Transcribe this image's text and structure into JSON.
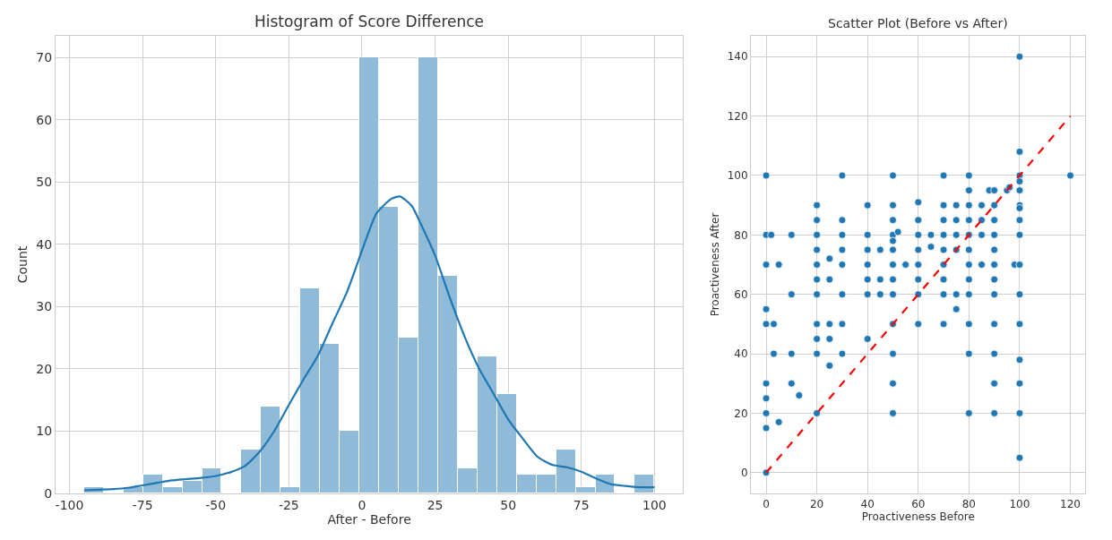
{
  "chart_data": [
    {
      "type": "histogram",
      "title": "Histogram of Score Difference",
      "xlabel": "After - Before",
      "ylabel": "Count",
      "grid": true,
      "xlim": [
        -104.75,
        109.75
      ],
      "ylim": [
        0,
        73.5
      ],
      "xticks": [
        -100,
        -75,
        -50,
        -25,
        0,
        25,
        50,
        75,
        100
      ],
      "yticks": [
        0,
        10,
        20,
        30,
        40,
        50,
        60,
        70
      ],
      "series": [
        {
          "color": "#8fbbd9",
          "bins": [
            -95,
            -88.28,
            -81.55,
            -74.83,
            -68.1,
            -61.38,
            -54.66,
            -47.93,
            -41.21,
            -34.48,
            -27.76,
            -21.03,
            -14.31,
            -7.59,
            -0.86,
            5.86,
            12.59,
            19.31,
            26.03,
            32.76,
            39.48,
            46.21,
            52.93,
            59.66,
            66.38,
            73.1,
            79.83,
            86.55,
            93.28,
            100
          ],
          "values": [
            1,
            0,
            1,
            3,
            1,
            2,
            4,
            0,
            7,
            14,
            1,
            33,
            24,
            10,
            70,
            46,
            25,
            70,
            35,
            4,
            22,
            16,
            3,
            3,
            7,
            1,
            3,
            0,
            3
          ]
        },
        {
          "type": "line",
          "color": "#1f77b4",
          "x": [
            -95,
            -90,
            -85,
            -80,
            -75,
            -70,
            -65,
            -60,
            -55,
            -50,
            -45,
            -40,
            -35,
            -30,
            -25,
            -20,
            -15,
            -10,
            -5,
            0,
            5,
            10,
            13,
            17,
            20,
            25,
            30,
            35,
            40,
            45,
            50,
            55,
            60,
            65,
            70,
            75,
            80,
            85,
            90,
            95,
            100
          ],
          "values": [
            0.5,
            0.6,
            0.7,
            0.9,
            1.3,
            1.7,
            2.1,
            2.3,
            2.5,
            2.8,
            3.4,
            4.4,
            6.7,
            10,
            14.2,
            18.3,
            22.2,
            27.4,
            32.5,
            39,
            45,
            47.3,
            47.7,
            46.2,
            43.4,
            38.2,
            31.5,
            25.3,
            20.1,
            16,
            11.9,
            8.8,
            5.9,
            4.6,
            4.2,
            3.5,
            2.4,
            1.5,
            1.2,
            1,
            1
          ]
        }
      ]
    },
    {
      "type": "scatter",
      "title": "Scatter Plot (Before vs After)",
      "xlabel": "Proactiveness Before",
      "ylabel": "Proactiveness After",
      "grid": true,
      "xlim": [
        -6,
        126
      ],
      "ylim": [
        -7,
        147
      ],
      "xticks": [
        0,
        20,
        40,
        60,
        80,
        100,
        120
      ],
      "yticks": [
        0,
        20,
        40,
        60,
        80,
        100,
        120,
        140
      ],
      "series": [
        {
          "marker": "circle",
          "color": "#1f77b4",
          "x": [
            0,
            0,
            0,
            0,
            0,
            0,
            0,
            0,
            0,
            0,
            2,
            3,
            3,
            5,
            5,
            10,
            10,
            10,
            10,
            13,
            20,
            20,
            20,
            20,
            20,
            20,
            20,
            20,
            20,
            20,
            20,
            25,
            25,
            25,
            25,
            25,
            30,
            30,
            30,
            30,
            30,
            30,
            30,
            30,
            40,
            40,
            40,
            40,
            40,
            40,
            40,
            45,
            45,
            45,
            50,
            50,
            50,
            50,
            50,
            50,
            50,
            50,
            50,
            50,
            50,
            50,
            50,
            52,
            55,
            60,
            60,
            60,
            60,
            60,
            60,
            60,
            60,
            65,
            65,
            70,
            70,
            70,
            70,
            70,
            70,
            70,
            70,
            70,
            75,
            75,
            75,
            75,
            75,
            75,
            80,
            80,
            80,
            80,
            80,
            80,
            80,
            80,
            80,
            80,
            80,
            80,
            85,
            85,
            85,
            85,
            88,
            90,
            90,
            90,
            90,
            90,
            90,
            90,
            90,
            90,
            90,
            90,
            90,
            95,
            96,
            98,
            100,
            100,
            100,
            100,
            100,
            100,
            100,
            100,
            100,
            100,
            100,
            100,
            100,
            100,
            100,
            100,
            120
          ],
          "values": [
            100,
            80,
            70,
            55,
            50,
            30,
            25,
            20,
            15,
            0,
            80,
            50,
            40,
            70,
            17,
            80,
            60,
            40,
            30,
            26,
            90,
            85,
            80,
            75,
            70,
            65,
            60,
            50,
            45,
            40,
            20,
            72,
            65,
            50,
            45,
            36,
            100,
            85,
            80,
            75,
            70,
            60,
            50,
            40,
            90,
            80,
            75,
            70,
            65,
            60,
            45,
            75,
            65,
            60,
            100,
            90,
            85,
            80,
            78,
            75,
            70,
            65,
            60,
            50,
            40,
            30,
            20,
            81,
            70,
            91,
            85,
            80,
            75,
            70,
            65,
            60,
            50,
            80,
            76,
            100,
            90,
            85,
            80,
            75,
            70,
            65,
            60,
            50,
            90,
            85,
            80,
            75,
            60,
            55,
            100,
            95,
            90,
            85,
            80,
            75,
            70,
            65,
            60,
            50,
            40,
            20,
            90,
            85,
            80,
            70,
            95,
            95,
            90,
            85,
            80,
            75,
            70,
            65,
            60,
            50,
            40,
            30,
            20,
            95,
            96,
            70,
            140,
            108,
            100,
            98,
            95,
            90,
            89,
            85,
            80,
            70,
            60,
            50,
            38,
            30,
            20,
            5,
            100
          ]
        },
        {
          "type": "line",
          "color": "#ff0000",
          "line_style": "dashed",
          "marker": "none",
          "x": [
            0,
            120
          ],
          "values": [
            0,
            120
          ]
        }
      ]
    }
  ]
}
